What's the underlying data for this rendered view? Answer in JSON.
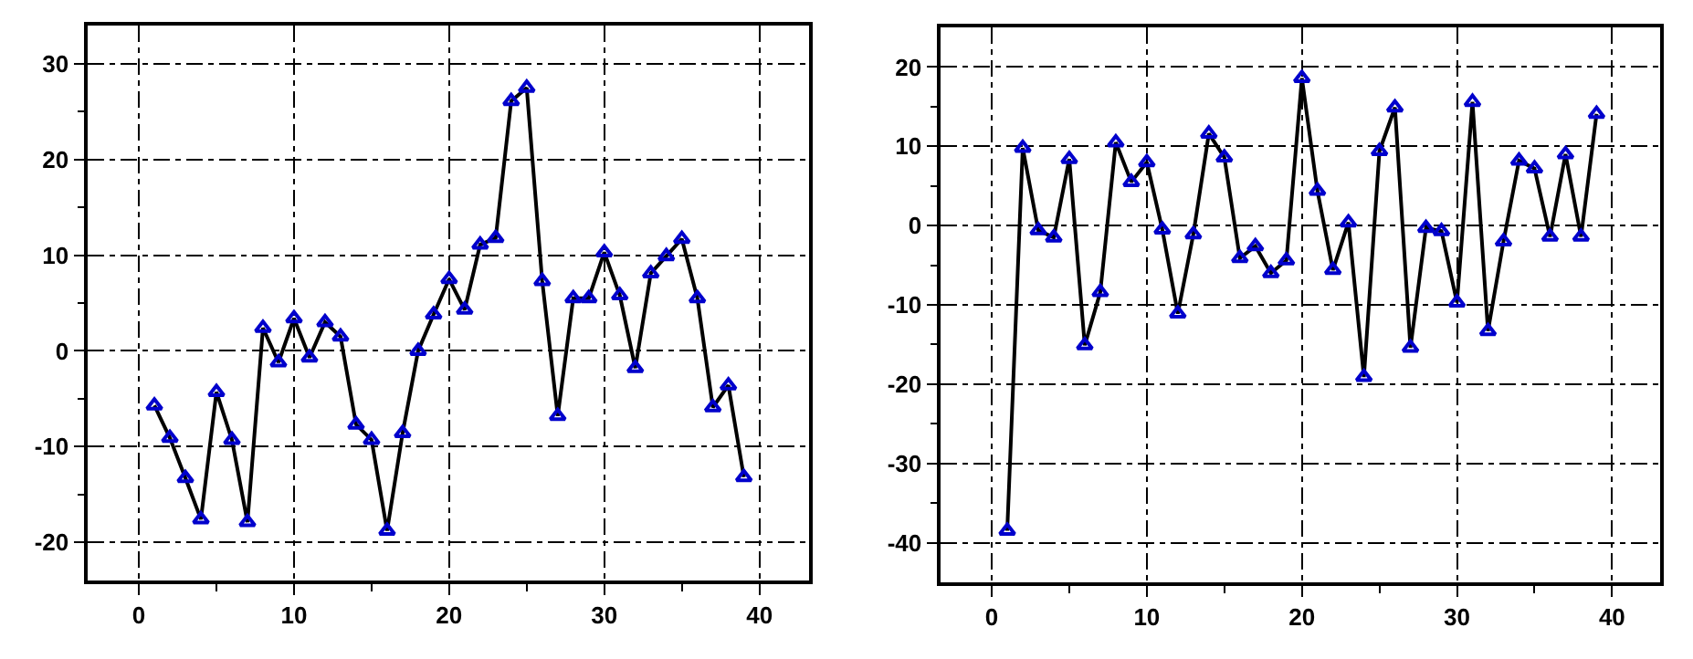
{
  "chart_data": [
    {
      "type": "line",
      "x": [
        1,
        2,
        3,
        4,
        5,
        6,
        7,
        8,
        9,
        10,
        11,
        12,
        13,
        14,
        15,
        16,
        17,
        18,
        19,
        20,
        21,
        22,
        23,
        24,
        25,
        26,
        27,
        28,
        29,
        30,
        31,
        32,
        33,
        34,
        35,
        36,
        37,
        38,
        39
      ],
      "series": [
        {
          "color": "#0000cc",
          "values": [
            -5.7,
            -9.1,
            -13.3,
            -17.6,
            -4.3,
            -9.3,
            -17.9,
            2.4,
            -1.2,
            3.4,
            -0.7,
            3.0,
            1.5,
            -7.7,
            -9.3,
            -18.8,
            -8.6,
            0,
            3.8,
            7.5,
            4.3,
            11.1,
            11.8,
            26.1,
            27.5,
            7.3,
            -6.8,
            5.5,
            5.5,
            10.3,
            5.8,
            -1.8,
            8.1,
            9.9,
            11.7,
            5.5,
            -5.9,
            -3.6,
            -13.2
          ]
        }
      ],
      "xlim": [
        -3.3,
        43.2
      ],
      "xticks": [
        0,
        10,
        20,
        30,
        40
      ],
      "ylim": [
        -24,
        34
      ],
      "yticks": [
        -20,
        -10,
        0,
        10,
        20,
        30
      ],
      "grid": true,
      "marker": "triangle",
      "line_style": "solid"
    },
    {
      "type": "line",
      "x": [
        1,
        2,
        3,
        4,
        5,
        6,
        7,
        8,
        9,
        10,
        11,
        12,
        13,
        14,
        15,
        16,
        17,
        18,
        19,
        20,
        21,
        22,
        23,
        24,
        25,
        26,
        27,
        28,
        29,
        30,
        31,
        32,
        33,
        34,
        35,
        36,
        37,
        38,
        39
      ],
      "series": [
        {
          "color": "#0000cc",
          "values": [
            -38.5,
            9.8,
            -0.6,
            -1.5,
            8.4,
            -15.1,
            -8.4,
            10.5,
            5.5,
            8.0,
            -0.5,
            -11.1,
            -1.1,
            11.6,
            8.6,
            -4.1,
            -2.6,
            -6.0,
            -4.4,
            18.6,
            4.4,
            -5.6,
            0.4,
            -19.1,
            9.4,
            14.9,
            -15.4,
            -0.3,
            -0.7,
            -9.7,
            15.6,
            -13.3,
            -2.0,
            8.2,
            7.2,
            -1.4,
            9.0,
            -1.4,
            14.1
          ]
        }
      ],
      "xlim": [
        -3.3,
        43.1
      ],
      "xticks": [
        0,
        10,
        20,
        30,
        40
      ],
      "ylim": [
        -45,
        25
      ],
      "yticks": [
        -40,
        -30,
        -20,
        -10,
        0,
        10,
        20
      ],
      "grid": true,
      "marker": "triangle",
      "line_style": "solid"
    }
  ]
}
